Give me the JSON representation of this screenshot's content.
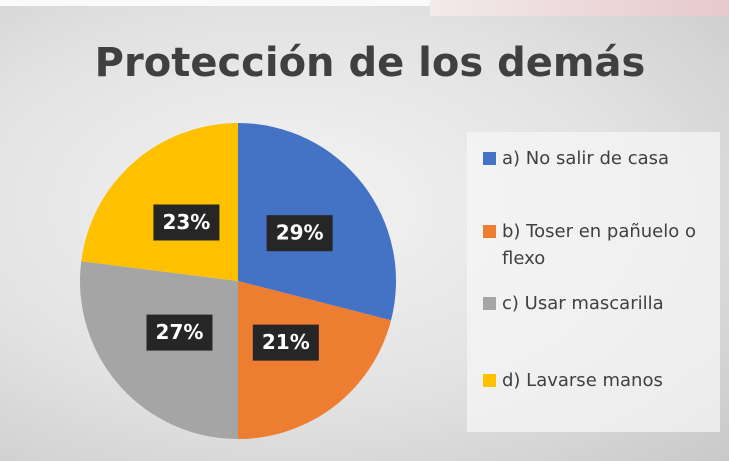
{
  "chart_data": {
    "type": "pie",
    "title": "Protección de los demás",
    "categories": [
      "a) No salir de casa",
      "b) Toser en pañuelo o flexo",
      "c) Usar mascarilla",
      "d) Lavarse manos"
    ],
    "values": [
      29,
      21,
      27,
      23
    ],
    "value_labels": [
      "29%",
      "21%",
      "27%",
      "23%"
    ],
    "colors": [
      "#4472c4",
      "#ed7d31",
      "#a5a5a5",
      "#ffc000"
    ],
    "legend": "right"
  }
}
